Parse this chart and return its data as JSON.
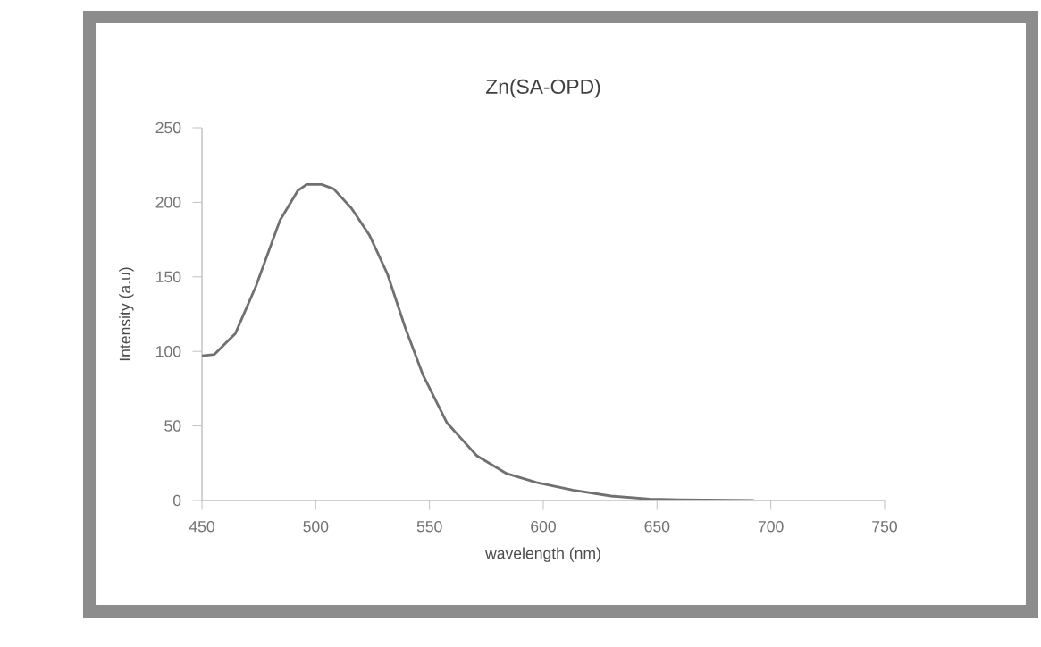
{
  "chart_data": {
    "type": "line",
    "title": "Zn(SA-OPD)",
    "xlabel": "wavelength (nm)",
    "ylabel": "Intensity (a.u)",
    "x": [
      450,
      455.5,
      464.7,
      473.8,
      484.3,
      492.2,
      496,
      502.6,
      507.9,
      515.7,
      523.6,
      531.5,
      539.3,
      547.2,
      557.7,
      570.8,
      583.9,
      597,
      613,
      629.7,
      646.7,
      660,
      692.5
    ],
    "values": [
      97,
      98,
      112,
      144,
      188,
      208,
      212,
      212,
      209,
      196,
      178,
      152,
      116,
      84,
      52,
      30,
      18,
      12,
      7,
      3,
      1,
      0.5,
      0
    ],
    "color": "#707070",
    "xlim": [
      450,
      750
    ],
    "ylim": [
      0,
      250
    ],
    "xticks": [
      450,
      500,
      550,
      600,
      650,
      700,
      750
    ],
    "yticks": [
      0,
      50,
      100,
      150,
      200,
      250
    ],
    "grid": false,
    "marker": "none",
    "line_style": "solid"
  }
}
